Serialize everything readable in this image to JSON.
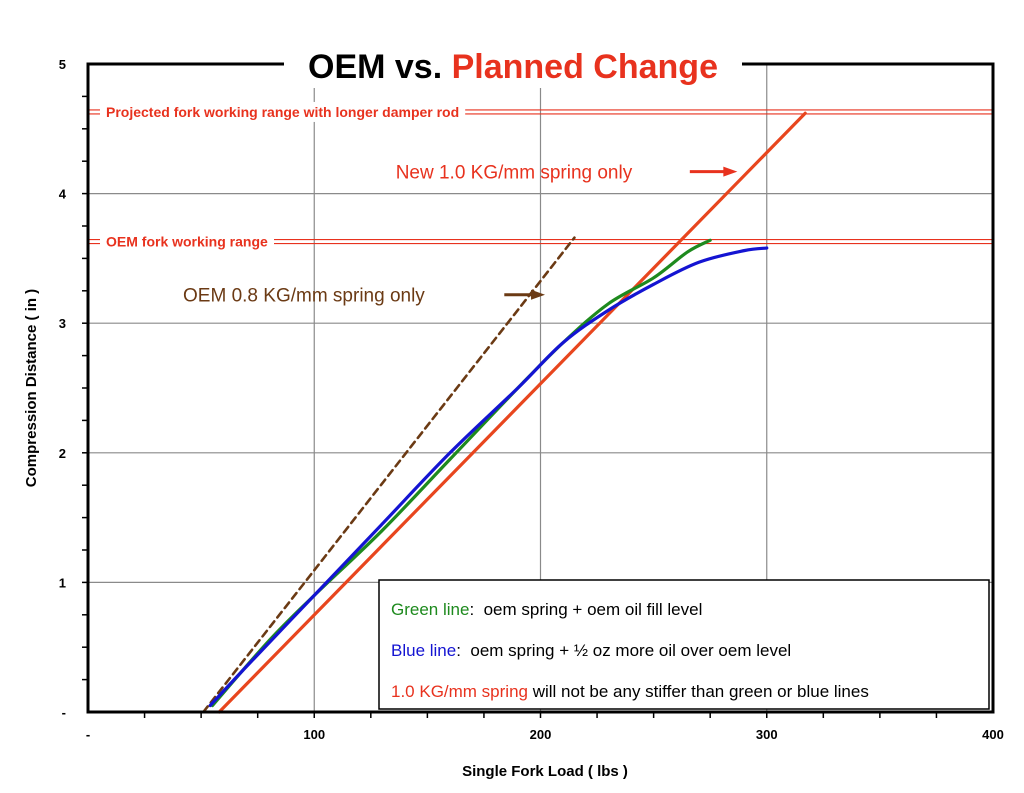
{
  "chart_data": {
    "type": "line",
    "title_parts": [
      {
        "text": "OEM vs. ",
        "color": "#000000"
      },
      {
        "text": "Planned Change",
        "color": "#e8321e"
      }
    ],
    "xlabel": "Single Fork Load ( lbs )",
    "ylabel": "Compression Distance ( in )",
    "xlim": [
      0,
      400
    ],
    "ylim": [
      0,
      5
    ],
    "x_ticks": [
      {
        "value": 0,
        "label": "-"
      },
      {
        "value": 100,
        "label": "100"
      },
      {
        "value": 200,
        "label": "200"
      },
      {
        "value": 300,
        "label": "300"
      },
      {
        "value": 400,
        "label": "400"
      }
    ],
    "y_ticks": [
      {
        "value": 0,
        "label": "-"
      },
      {
        "value": 1,
        "label": "1"
      },
      {
        "value": 2,
        "label": "2"
      },
      {
        "value": 3,
        "label": "3"
      },
      {
        "value": 4,
        "label": "4"
      },
      {
        "value": 5,
        "label": "5"
      }
    ],
    "grid": true,
    "series": [
      {
        "color": "#1e8a1e",
        "points": [
          [
            55,
            0.05
          ],
          [
            80,
            0.55
          ],
          [
            100,
            0.9
          ],
          [
            130,
            1.4
          ],
          [
            160,
            1.95
          ],
          [
            190,
            2.5
          ],
          [
            210,
            2.85
          ],
          [
            230,
            3.15
          ],
          [
            250,
            3.35
          ],
          [
            265,
            3.55
          ],
          [
            275,
            3.64
          ]
        ]
      },
      {
        "color": "#1414d2",
        "points": [
          [
            54,
            0.05
          ],
          [
            70,
            0.35
          ],
          [
            100,
            0.9
          ],
          [
            130,
            1.45
          ],
          [
            160,
            2.0
          ],
          [
            190,
            2.5
          ],
          [
            210,
            2.85
          ],
          [
            230,
            3.1
          ],
          [
            250,
            3.3
          ],
          [
            270,
            3.47
          ],
          [
            290,
            3.56
          ],
          [
            300,
            3.58
          ]
        ]
      },
      {
        "color": "#e8461e",
        "points": [
          [
            58,
            0.0
          ],
          [
            317,
            4.62
          ]
        ]
      },
      {
        "color": "#6b3a14",
        "dashed": true,
        "points": [
          [
            51,
            0.0
          ],
          [
            215,
            3.66
          ]
        ]
      }
    ],
    "reference_lines": [
      {
        "y": 4.63,
        "label": "Projected fork working range with longer damper rod"
      },
      {
        "y": 3.63,
        "label": "OEM fork working range"
      }
    ],
    "annotations": [
      {
        "text": "New 1.0 KG/mm spring only",
        "color": "#e8321e",
        "x": 136,
        "y": 4.17,
        "arrow_from": [
          266,
          4.17
        ],
        "arrow_to": [
          287,
          4.17
        ]
      },
      {
        "text": "OEM 0.8 KG/mm spring only",
        "color": "#6b3a14",
        "x": 42,
        "y": 3.22,
        "arrow_from": [
          184,
          3.22
        ],
        "arrow_to": [
          202,
          3.22
        ]
      }
    ],
    "legend": {
      "placement": "bottom-right",
      "entries": [
        {
          "label_colored": "Green line",
          "color": "#1e8a1e",
          "rest": ":  oem spring + oem oil fill level"
        },
        {
          "label_colored": "Blue line",
          "color": "#1414d2",
          "rest": ":  oem spring + ½ oz more oil over oem level"
        },
        {
          "label_colored": "1.0 KG/mm spring",
          "color": "#e8321e",
          "rest": " will not be any stiffer than green or blue lines"
        }
      ]
    }
  }
}
